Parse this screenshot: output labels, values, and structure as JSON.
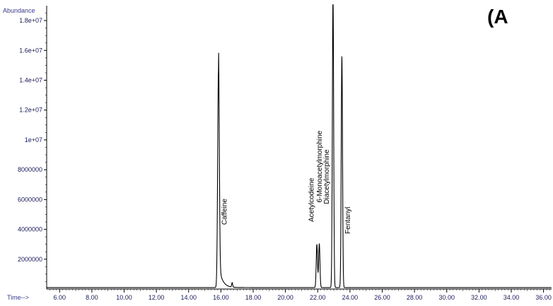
{
  "chart_data": {
    "type": "line",
    "panel_label": "(A",
    "ylabel": "Abundance",
    "xlabel": "Time-->",
    "xlim": [
      5.2,
      36.5
    ],
    "ylim": [
      0,
      19000000
    ],
    "x_ticks": [
      6,
      8,
      10,
      12,
      14,
      16,
      18,
      20,
      22,
      24,
      26,
      28,
      30,
      32,
      34,
      36
    ],
    "x_tick_labels": [
      "6.00",
      "8.00",
      "10.00",
      "12.00",
      "14.00",
      "16.00",
      "18.00",
      "20.00",
      "22.00",
      "24.00",
      "26.00",
      "28.00",
      "30.00",
      "32.00",
      "34.00",
      "36.00"
    ],
    "y_ticks": [
      2000000,
      4000000,
      6000000,
      8000000,
      10000000,
      12000000,
      14000000,
      16000000,
      18000000
    ],
    "y_tick_labels": [
      "2000000",
      "4000000",
      "6000000",
      "8000000",
      "1e+07",
      "1.2e+07",
      "1.4e+07",
      "1.6e+07",
      "1.8e+07"
    ],
    "grid": false,
    "line_color": "#000000",
    "baseline": 100000,
    "peaks": [
      {
        "x": 15.85,
        "y": 14500000,
        "width": 0.05,
        "tail": true
      },
      {
        "x": 16.7,
        "y": 300000,
        "width": 0.03,
        "tail": false
      },
      {
        "x": 21.95,
        "y": 2900000,
        "width": 0.04,
        "tail": false
      },
      {
        "x": 22.1,
        "y": 2950000,
        "width": 0.04,
        "tail": false
      },
      {
        "x": 22.95,
        "y": 19500000,
        "width": 0.04,
        "tail": false
      },
      {
        "x": 23.5,
        "y": 15500000,
        "width": 0.04,
        "tail": false
      }
    ],
    "annotations": [
      {
        "text": "Caffeine",
        "x": 16.35,
        "y": 4300000
      },
      {
        "text": "Acetylcodeine",
        "x": 21.75,
        "y": 4500000
      },
      {
        "text": "6-Monoacetylmorphine",
        "x": 22.25,
        "y": 5800000
      },
      {
        "text": "Diacetylmorphine",
        "x": 22.7,
        "y": 5700000
      },
      {
        "text": "Fentanyl",
        "x": 24.0,
        "y": 3700000
      }
    ]
  }
}
